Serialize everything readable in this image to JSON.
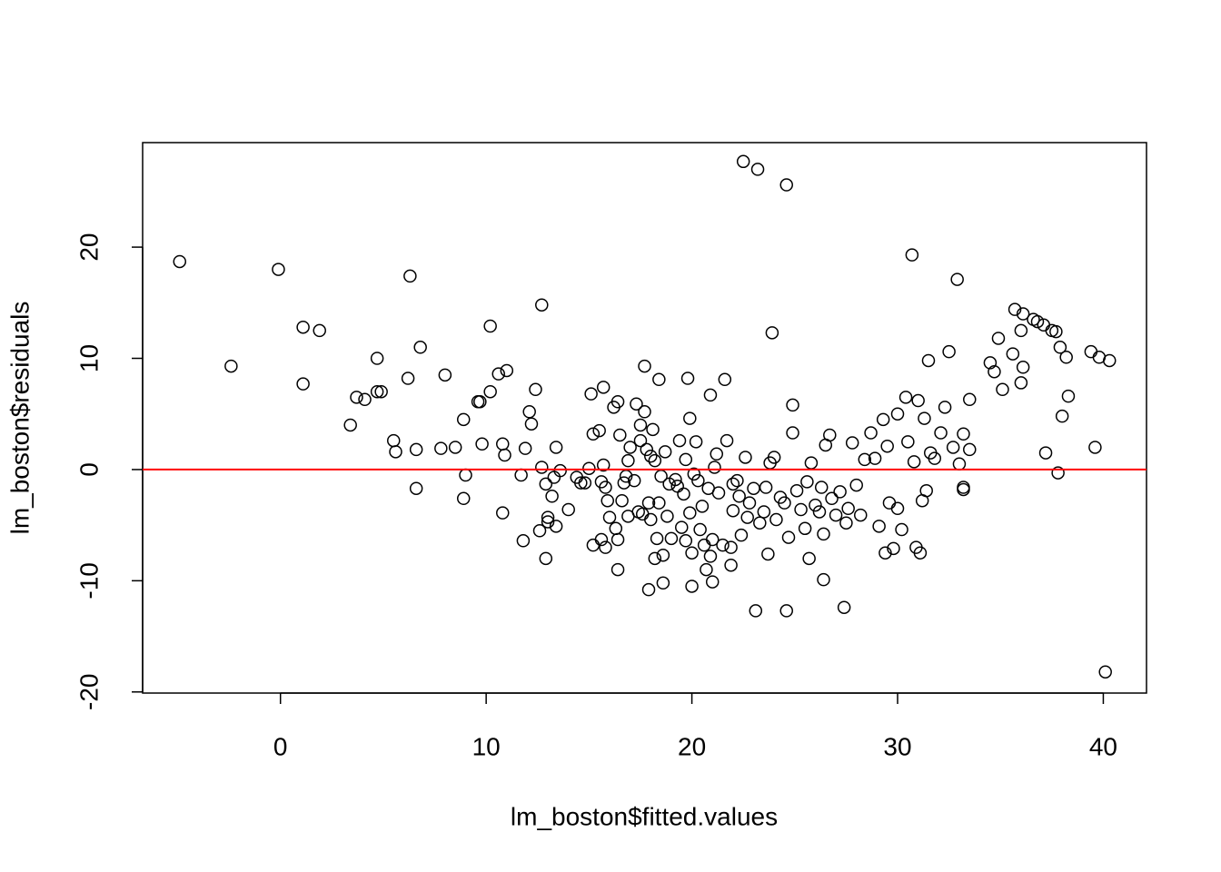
{
  "chart_data": {
    "type": "scatter",
    "x_label": "lm_boston$fitted.values",
    "y_label": "lm_boston$residuals",
    "xlim": [
      -6.7,
      42.1
    ],
    "ylim": [
      -20.1,
      29.4
    ],
    "xticks": [
      0,
      10,
      20,
      30,
      40
    ],
    "yticks": [
      -20,
      -10,
      0,
      10,
      20
    ],
    "color": "#000000",
    "hline": 0,
    "hline_color": "#ff0000",
    "x": [
      -4.9,
      -2.4,
      -0.1,
      1.1,
      1.1,
      1.9,
      3.4,
      3.7,
      4.1,
      4.7,
      4.7,
      4.9,
      5.5,
      5.6,
      6.2,
      6.3,
      6.6,
      6.6,
      6.8,
      7.8,
      8.0,
      8.5,
      8.9,
      8.9,
      9.0,
      9.6,
      9.7,
      9.8,
      10.2,
      10.2,
      10.6,
      10.8,
      10.8,
      10.9,
      11.0,
      11.7,
      11.8,
      11.9,
      12.1,
      12.2,
      12.4,
      12.6,
      12.7,
      12.7,
      12.9,
      12.9,
      13.0,
      13.0,
      13.2,
      13.3,
      13.4,
      13.4,
      13.6,
      14.0,
      14.4,
      14.6,
      14.8,
      15.0,
      15.1,
      15.2,
      15.2,
      15.5,
      15.6,
      15.6,
      15.7,
      15.7,
      15.8,
      15.8,
      15.9,
      16.0,
      16.2,
      16.3,
      16.4,
      16.4,
      16.4,
      16.5,
      16.6,
      16.7,
      16.8,
      16.9,
      16.9,
      17.0,
      17.2,
      17.3,
      17.4,
      17.5,
      17.5,
      17.6,
      17.7,
      17.7,
      17.8,
      17.9,
      17.9,
      18.0,
      18.0,
      18.1,
      18.2,
      18.2,
      18.3,
      18.4,
      18.4,
      18.5,
      18.6,
      18.6,
      18.7,
      18.8,
      18.9,
      19.0,
      19.2,
      19.3,
      19.4,
      19.5,
      19.6,
      19.7,
      19.7,
      19.8,
      19.9,
      19.9,
      20.0,
      20.0,
      20.1,
      20.2,
      20.3,
      20.4,
      20.5,
      20.6,
      20.7,
      20.8,
      20.9,
      20.9,
      21.0,
      21.0,
      21.1,
      21.2,
      21.3,
      21.5,
      21.6,
      21.7,
      21.9,
      21.9,
      22.0,
      22.0,
      22.2,
      22.3,
      22.4,
      22.5,
      22.6,
      22.7,
      22.8,
      23.0,
      23.1,
      23.2,
      23.3,
      23.5,
      23.6,
      23.7,
      23.8,
      23.9,
      24.0,
      24.1,
      24.3,
      24.5,
      24.6,
      24.6,
      24.7,
      24.9,
      24.9,
      25.1,
      25.3,
      25.5,
      25.6,
      25.7,
      25.8,
      26.0,
      26.2,
      26.3,
      26.4,
      26.4,
      26.5,
      26.7,
      26.8,
      27.0,
      27.2,
      27.4,
      27.5,
      27.6,
      27.8,
      28.0,
      28.2,
      28.4,
      28.7,
      28.9,
      29.1,
      29.3,
      29.4,
      29.5,
      29.6,
      29.8,
      30.0,
      30.0,
      30.2,
      30.4,
      30.5,
      30.7,
      30.8,
      30.9,
      31.0,
      31.1,
      31.2,
      31.3,
      31.4,
      31.5,
      31.6,
      31.8,
      32.1,
      32.3,
      32.5,
      32.7,
      32.9,
      33.0,
      33.2,
      33.2,
      33.2,
      33.5,
      33.5,
      34.5,
      34.7,
      34.9,
      35.1,
      35.6,
      35.7,
      36.0,
      36.0,
      36.1,
      36.1,
      36.6,
      36.8,
      37.1,
      37.2,
      37.5,
      37.7,
      37.8,
      37.9,
      38.0,
      38.2,
      38.3,
      39.4,
      39.6,
      39.8,
      40.1,
      40.3
    ],
    "values": [
      18.7,
      9.3,
      18,
      12.8,
      7.7,
      12.5,
      4.0,
      6.5,
      6.3,
      10.0,
      7.0,
      7.0,
      2.6,
      1.6,
      8.2,
      17.4,
      -1.7,
      1.8,
      11.0,
      1.9,
      8.5,
      2.0,
      4.5,
      -2.6,
      -0.5,
      6.1,
      6.1,
      2.3,
      12.9,
      7.0,
      8.6,
      -3.9,
      2.3,
      1.3,
      8.9,
      -0.5,
      -6.4,
      1.9,
      5.2,
      4.1,
      7.2,
      -5.5,
      0.2,
      14.8,
      -8.0,
      -1.3,
      -4.3,
      -4.7,
      -2.4,
      -0.7,
      -5.1,
      2.0,
      -0.1,
      -3.6,
      -0.7,
      -1.2,
      -1.2,
      0.1,
      6.8,
      -6.8,
      3.2,
      3.5,
      -6.3,
      -1.1,
      7.4,
      0.4,
      -7.0,
      -1.6,
      -2.8,
      -4.3,
      5.6,
      -5.3,
      6.1,
      -6.3,
      -9.0,
      3.1,
      -2.8,
      -1.2,
      -0.6,
      -4.2,
      0.8,
      2.0,
      -1.0,
      5.9,
      -3.8,
      4.0,
      2.6,
      -4.0,
      5.2,
      9.3,
      1.8,
      -3.0,
      -10.8,
      1.2,
      -4.5,
      3.6,
      -8.0,
      0.8,
      -6.2,
      -3.0,
      8.1,
      -0.6,
      -10.2,
      -7.7,
      1.6,
      -4.2,
      -1.3,
      -6.2,
      -0.9,
      -1.5,
      2.6,
      -5.2,
      -2.2,
      -6.4,
      0.9,
      8.2,
      -3.9,
      4.6,
      -10.5,
      -7.5,
      -0.4,
      2.5,
      -1.0,
      -5.4,
      -3.3,
      -6.8,
      -9.0,
      -1.7,
      6.7,
      -7.8,
      -10.1,
      -6.3,
      0.2,
      1.4,
      -2.1,
      -6.8,
      8.1,
      2.6,
      -7.0,
      -8.6,
      -3.7,
      -1.3,
      -1.0,
      -2.4,
      -5.9,
      27.7,
      1.1,
      -4.3,
      -3.0,
      -1.7,
      -12.7,
      27.0,
      -4.8,
      -3.8,
      -1.6,
      -7.6,
      0.6,
      12.3,
      1.1,
      -4.5,
      -2.5,
      -3.0,
      25.6,
      -12.7,
      -6.1,
      3.3,
      5.8,
      -1.9,
      -3.6,
      -5.3,
      -1.1,
      -8.0,
      0.6,
      -3.2,
      -3.8,
      -1.6,
      -5.8,
      -9.9,
      2.2,
      3.1,
      -2.6,
      -4.1,
      -2.0,
      -12.4,
      -4.8,
      -3.5,
      2.4,
      -1.4,
      -4.1,
      0.9,
      3.3,
      1.0,
      -5.1,
      4.5,
      -7.5,
      2.1,
      -3.0,
      -7.1,
      -3.5,
      5.0,
      -5.4,
      6.5,
      2.5,
      19.3,
      0.7,
      -7.0,
      6.2,
      -7.5,
      -2.8,
      4.6,
      -1.9,
      9.8,
      1.5,
      1.0,
      3.3,
      5.6,
      10.6,
      2.0,
      17.1,
      0.5,
      3.2,
      -1.6,
      -1.8,
      6.3,
      1.8,
      9.6,
      8.8,
      11.8,
      7.2,
      10.4,
      14.4,
      12.5,
      7.8,
      9.2,
      14.0,
      13.5,
      13.3,
      13.0,
      1.5,
      12.5,
      12.4,
      -0.3,
      11.0,
      4.8,
      10.1,
      6.6,
      10.6,
      2.0,
      10.1,
      -18.2,
      9.8
    ]
  }
}
